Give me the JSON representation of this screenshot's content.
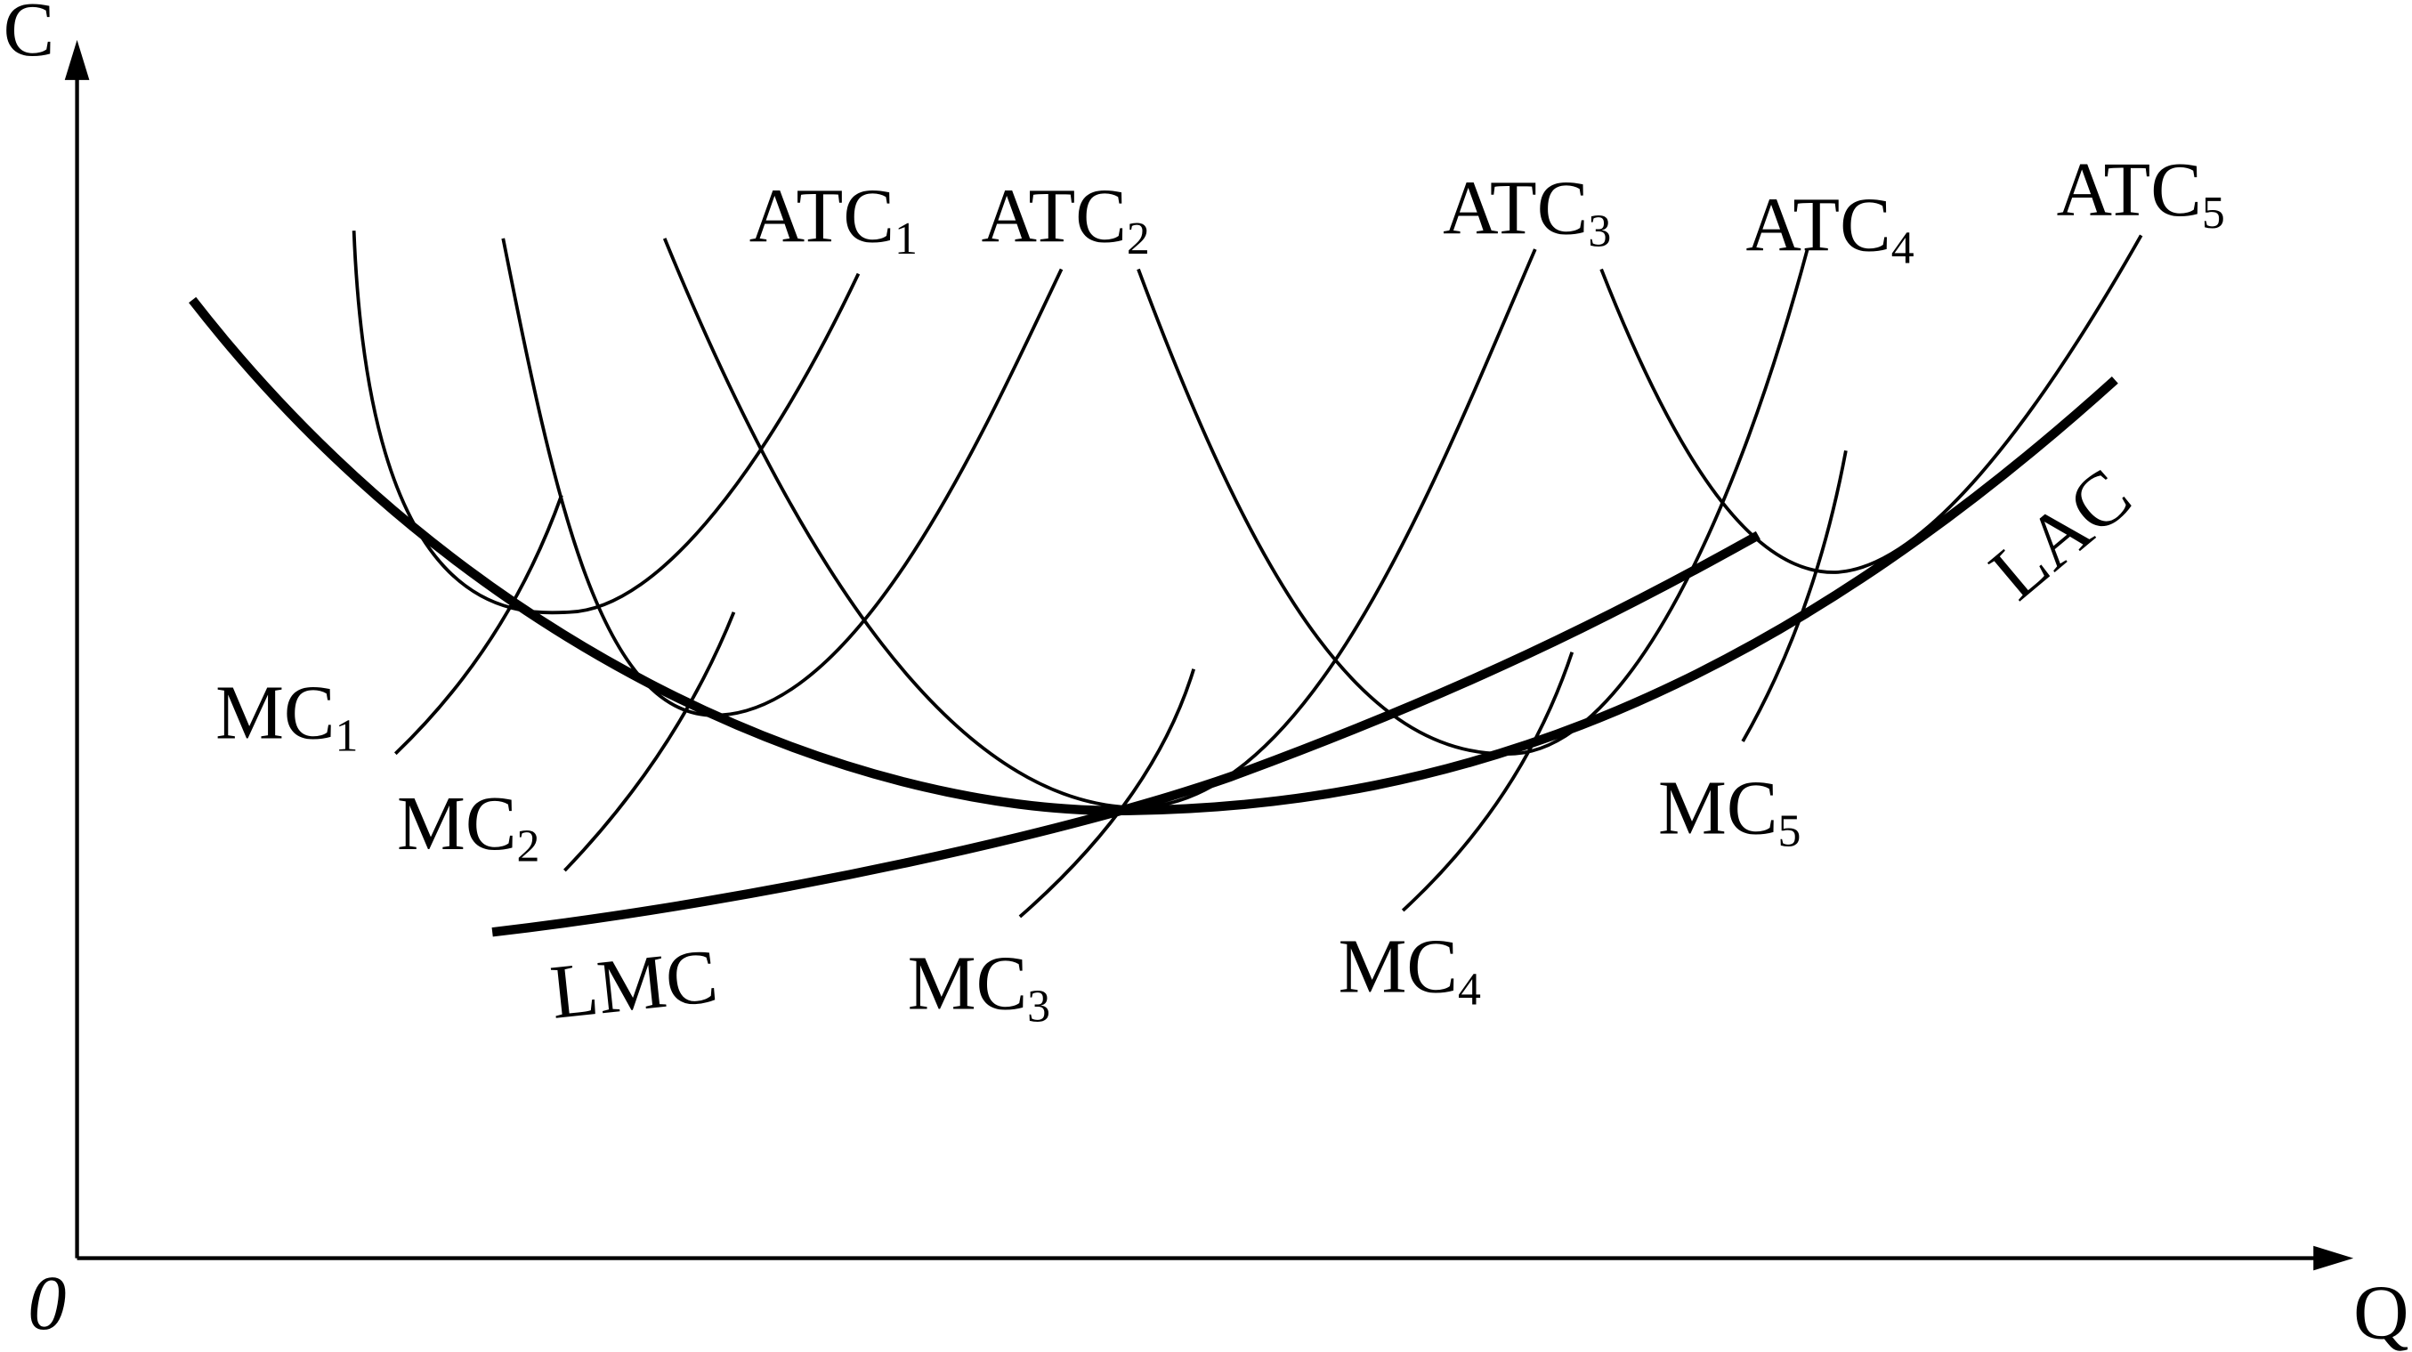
{
  "axes": {
    "y": "C",
    "x": "Q",
    "origin": "0"
  },
  "atc": [
    {
      "name": "ATC",
      "sub": "1"
    },
    {
      "name": "ATC",
      "sub": "2"
    },
    {
      "name": "ATC",
      "sub": "3"
    },
    {
      "name": "ATC",
      "sub": "4"
    },
    {
      "name": "ATC",
      "sub": "5"
    }
  ],
  "mc": [
    {
      "name": "MC",
      "sub": "1"
    },
    {
      "name": "MC",
      "sub": "2"
    },
    {
      "name": "MC",
      "sub": "3"
    },
    {
      "name": "MC",
      "sub": "4"
    },
    {
      "name": "MC",
      "sub": "5"
    }
  ],
  "lac": "LAC",
  "lmc": "LMC"
}
